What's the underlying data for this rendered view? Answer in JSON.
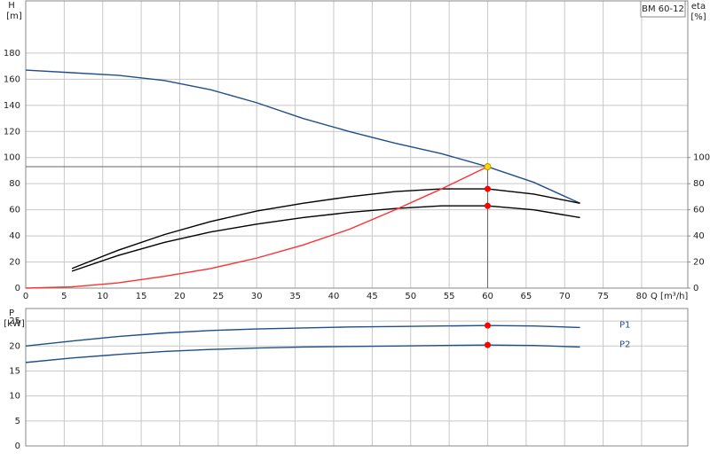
{
  "chart_data": [
    {
      "type": "line",
      "annotation": "BM 60-12",
      "ylabel": "H",
      "yunit": "[m]",
      "y2label": "eta",
      "y2unit": "[%]",
      "xlabel": "Q [m³/h]",
      "x": [
        0,
        6,
        12,
        18,
        24,
        30,
        36,
        42,
        48,
        54,
        60,
        66,
        72
      ],
      "xlim": [
        0,
        86
      ],
      "xticks": [
        0,
        5,
        10,
        15,
        20,
        25,
        30,
        35,
        40,
        45,
        50,
        55,
        60,
        65,
        70,
        75,
        80
      ],
      "ylim": [
        0,
        220
      ],
      "yticks": [
        0,
        20,
        40,
        60,
        80,
        100,
        120,
        140,
        160,
        180
      ],
      "y2lim": [
        0,
        220
      ],
      "y2ticks": [
        0,
        20,
        40,
        60,
        80,
        100
      ],
      "grid": true,
      "series": [
        {
          "color": "#1f4e8c",
          "values": [
            167,
            165,
            163,
            159,
            152,
            142,
            130,
            120,
            111,
            103,
            93,
            81,
            65
          ]
        },
        {
          "color": "#000000",
          "axis": "y2",
          "values": [
            null,
            15,
            29,
            41,
            51,
            59,
            65,
            70,
            74,
            76,
            76,
            72,
            65
          ]
        },
        {
          "color": "#000000",
          "axis": "y2",
          "values": [
            null,
            13,
            25,
            35,
            43,
            49,
            54,
            58,
            61,
            63,
            63,
            60,
            54
          ]
        },
        {
          "color": "#ff3030",
          "values": [
            0,
            1,
            4,
            9,
            15,
            23,
            33,
            45,
            60,
            76,
            93,
            null,
            null
          ]
        }
      ],
      "points": [
        {
          "x": 60,
          "y": 93,
          "color": "#ffd700"
        },
        {
          "x": 60,
          "y": 76,
          "color": "#ff0000"
        },
        {
          "x": 60,
          "y": 63,
          "color": "#ff0000"
        }
      ],
      "crosshair": true
    },
    {
      "type": "line",
      "ylabel": "P",
      "yunit": "[kW]",
      "x": [
        0,
        6,
        12,
        18,
        24,
        30,
        36,
        42,
        48,
        54,
        60,
        66,
        72
      ],
      "xlim": [
        0,
        86
      ],
      "xticks": [
        0,
        5,
        10,
        15,
        20,
        25,
        30,
        35,
        40,
        45,
        50,
        55,
        60,
        65,
        70,
        75,
        80
      ],
      "ylim": [
        0,
        27.5
      ],
      "yticks": [
        0,
        5,
        10,
        15,
        20,
        25
      ],
      "grid": true,
      "series": [
        {
          "name": "P1",
          "color": "#1f4e8c",
          "values": [
            20,
            21,
            21.9,
            22.6,
            23.1,
            23.4,
            23.6,
            23.8,
            23.9,
            24.0,
            24.1,
            24.0,
            23.7
          ]
        },
        {
          "name": "P2",
          "color": "#1f4e8c",
          "values": [
            16.7,
            17.6,
            18.3,
            18.9,
            19.3,
            19.6,
            19.8,
            19.9,
            20.0,
            20.1,
            20.2,
            20.1,
            19.8
          ]
        }
      ],
      "points": [
        {
          "x": 60,
          "y": 24.1,
          "color": "#ff0000"
        },
        {
          "x": 60,
          "y": 20.2,
          "color": "#ff0000"
        }
      ]
    }
  ]
}
